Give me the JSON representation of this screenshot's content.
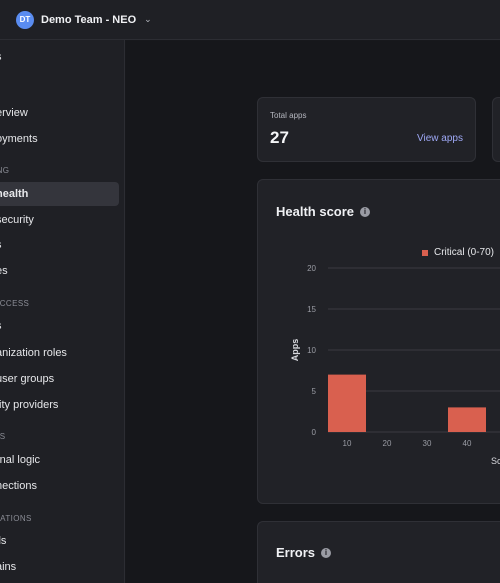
{
  "topbar": {
    "avatar_initials": "DT",
    "team_name": "Demo Team - NEO"
  },
  "sidebar": {
    "items": [
      {
        "label": "s"
      },
      {
        "label": "erview"
      },
      {
        "label": "oyments"
      },
      {
        "label": "health",
        "active": true
      },
      {
        "label": "security"
      },
      {
        "label": "s"
      },
      {
        "label": "es"
      },
      {
        "label": "s"
      },
      {
        "label": "anization roles"
      },
      {
        "label": "user groups"
      },
      {
        "label": "tity providers"
      },
      {
        "label": "rnal logic"
      },
      {
        "label": "nections"
      },
      {
        "label": "ils"
      },
      {
        "label": "ains"
      }
    ],
    "sections": [
      {
        "label": "ING"
      },
      {
        "label": "ACCESS"
      },
      {
        "label": "ES"
      },
      {
        "label": "RATIONS"
      }
    ]
  },
  "stats": {
    "total_apps_label": "Total apps",
    "total_apps_value": "27",
    "view_apps_link": "View apps"
  },
  "health": {
    "title": "Health score",
    "legend": "Critical (0-70)",
    "colors": {
      "critical": "#d9604f"
    }
  },
  "errors": {
    "title": "Errors"
  },
  "chart_data": {
    "type": "bar",
    "title": "Health score",
    "ylabel": "Apps",
    "xlabel": "Sc",
    "ylim": [
      0,
      20
    ],
    "yticks": [
      0,
      5,
      10,
      15,
      20
    ],
    "x_ticks": [
      "10",
      "20",
      "30",
      "40"
    ],
    "series": [
      {
        "name": "Critical (0-70)",
        "color": "#d9604f",
        "categories": [
          "10",
          "20",
          "30",
          "40"
        ],
        "values": [
          7,
          0,
          0,
          3
        ]
      }
    ]
  }
}
